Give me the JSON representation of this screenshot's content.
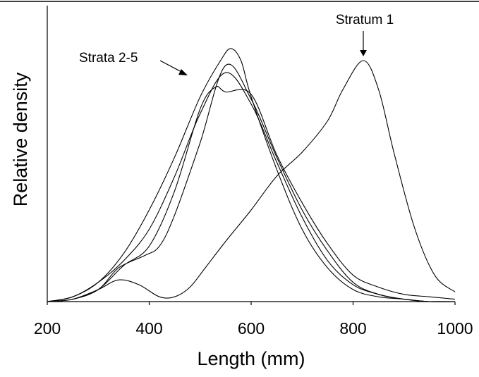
{
  "chart_data": {
    "type": "line",
    "xlabel": "Length (mm)",
    "ylabel": "Relative density",
    "xlim": [
      200,
      1000
    ],
    "ylim": [
      0,
      1.0
    ],
    "xticks": [
      "200",
      "400",
      "600",
      "800",
      "1000"
    ],
    "yticks_shown": false,
    "grid": false,
    "legend": "none",
    "annotations": [
      {
        "text": "Stratum 1"
      },
      {
        "text": "Strata 2-5"
      }
    ],
    "series": [
      {
        "x": [
          200,
          250,
          300,
          340,
          380,
          420,
          450,
          480,
          510,
          550,
          600,
          650,
          700,
          750,
          780,
          820,
          850,
          880,
          920,
          960,
          1000
        ],
        "y": [
          0.0,
          0.01,
          0.05,
          0.09,
          0.07,
          0.02,
          0.02,
          0.06,
          0.14,
          0.25,
          0.38,
          0.52,
          0.62,
          0.75,
          0.88,
          1.0,
          0.88,
          0.62,
          0.31,
          0.11,
          0.04
        ]
      },
      {
        "x": [
          200,
          250,
          300,
          350,
          400,
          450,
          500,
          540,
          560,
          580,
          600,
          650,
          700,
          750,
          800,
          850,
          900,
          950,
          1000
        ],
        "y": [
          0.0,
          0.02,
          0.08,
          0.2,
          0.38,
          0.6,
          0.85,
          1.0,
          1.05,
          1.0,
          0.85,
          0.55,
          0.3,
          0.14,
          0.05,
          0.02,
          0.01,
          0.0,
          0.0
        ]
      },
      {
        "x": [
          200,
          250,
          300,
          350,
          400,
          450,
          500,
          550,
          600,
          650,
          700,
          750,
          800,
          850,
          900,
          950,
          1000
        ],
        "y": [
          0.0,
          0.02,
          0.08,
          0.17,
          0.3,
          0.52,
          0.78,
          0.95,
          0.82,
          0.58,
          0.35,
          0.17,
          0.07,
          0.03,
          0.01,
          0.0,
          0.0
        ]
      },
      {
        "x": [
          200,
          250,
          300,
          340,
          390,
          420,
          450,
          500,
          550,
          600,
          650,
          700,
          750,
          800,
          850,
          900,
          950,
          1000
        ],
        "y": [
          0.0,
          0.01,
          0.05,
          0.14,
          0.19,
          0.23,
          0.36,
          0.66,
          0.98,
          0.84,
          0.6,
          0.38,
          0.21,
          0.08,
          0.03,
          0.01,
          0.0,
          0.0
        ]
      },
      {
        "x": [
          200,
          250,
          300,
          350,
          400,
          450,
          500,
          530,
          550,
          600,
          650,
          700,
          750,
          800,
          850,
          900,
          950,
          1000
        ],
        "y": [
          0.0,
          0.01,
          0.05,
          0.15,
          0.23,
          0.46,
          0.8,
          0.89,
          0.87,
          0.86,
          0.61,
          0.41,
          0.24,
          0.11,
          0.06,
          0.03,
          0.02,
          0.01
        ]
      }
    ]
  }
}
